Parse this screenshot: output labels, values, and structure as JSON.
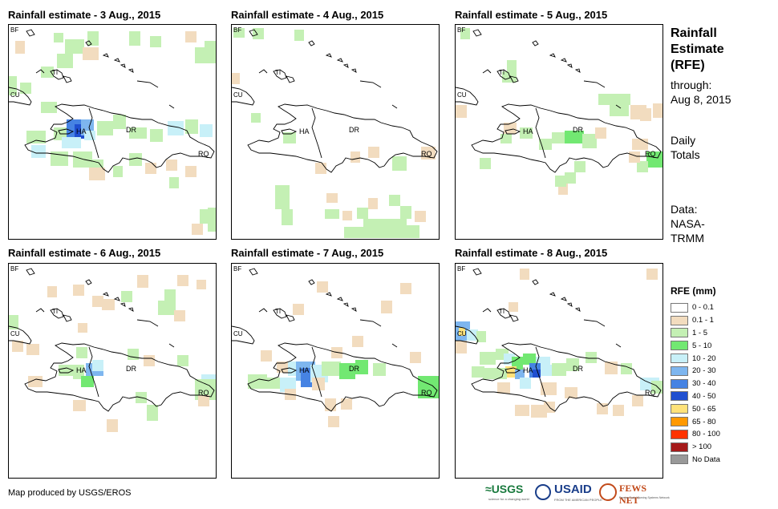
{
  "panels": [
    {
      "title": "Rainfall estimate - 3 Aug., 2015"
    },
    {
      "title": "Rainfall estimate - 4 Aug., 2015"
    },
    {
      "title": "Rainfall estimate - 5 Aug., 2015"
    },
    {
      "title": "Rainfall estimate - 6 Aug., 2015"
    },
    {
      "title": "Rainfall estimate - 7 Aug., 2015"
    },
    {
      "title": "Rainfall estimate - 8 Aug., 2015"
    }
  ],
  "map_labels": {
    "bf": "BF",
    "ti": "TI",
    "cu": "CU",
    "ha": "HA",
    "dr": "DR",
    "rq": "RQ"
  },
  "sidebar": {
    "title_line1": "Rainfall",
    "title_line2": "Estimate",
    "title_line3": "(RFE)",
    "through_label": "through:",
    "through_date": "Aug 8, 2015",
    "daily_line1": "Daily",
    "daily_line2": "Totals",
    "data_label": "Data:",
    "data_source1": "NASA-",
    "data_source2": "TRMM"
  },
  "legend": {
    "title": "RFE (mm)",
    "items": [
      {
        "label": "0 - 0.1",
        "color": "#ffffff"
      },
      {
        "label": "0.1 - 1",
        "color": "#f2dcbf"
      },
      {
        "label": "1 - 5",
        "color": "#c4f0b4"
      },
      {
        "label": "5 - 10",
        "color": "#72e872"
      },
      {
        "label": "10 - 20",
        "color": "#c8f0f8"
      },
      {
        "label": "20 - 30",
        "color": "#7eb6ef"
      },
      {
        "label": "30 - 40",
        "color": "#4683e3"
      },
      {
        "label": "40 - 50",
        "color": "#1f4fd0"
      },
      {
        "label": "50 - 65",
        "color": "#ffe27a"
      },
      {
        "label": "65 - 80",
        "color": "#ff9900"
      },
      {
        "label": "80 - 100",
        "color": "#ff3300"
      },
      {
        "label": "> 100",
        "color": "#a51a1a"
      },
      {
        "label": "No Data",
        "color": "#999999"
      }
    ]
  },
  "credit": "Map produced by USGS/EROS",
  "logos": {
    "usgs": "USGS",
    "usgs_tagline": "science for a changing world",
    "usaid": "USAID",
    "usaid_tagline": "FROM THE AMERICAN PEOPLE",
    "fewsnet": "FEWS NET",
    "fewsnet_tagline": "Famine Early Warning Systems Network"
  },
  "colors": {
    "trace": "#f2dcbf",
    "light_green": "#c4f0b4",
    "green": "#72e872",
    "light_blue": "#c8f0f8",
    "mid_blue": "#7eb6ef",
    "blue": "#4683e3",
    "dark_blue": "#1f4fd0",
    "yellow": "#ffe27a"
  }
}
